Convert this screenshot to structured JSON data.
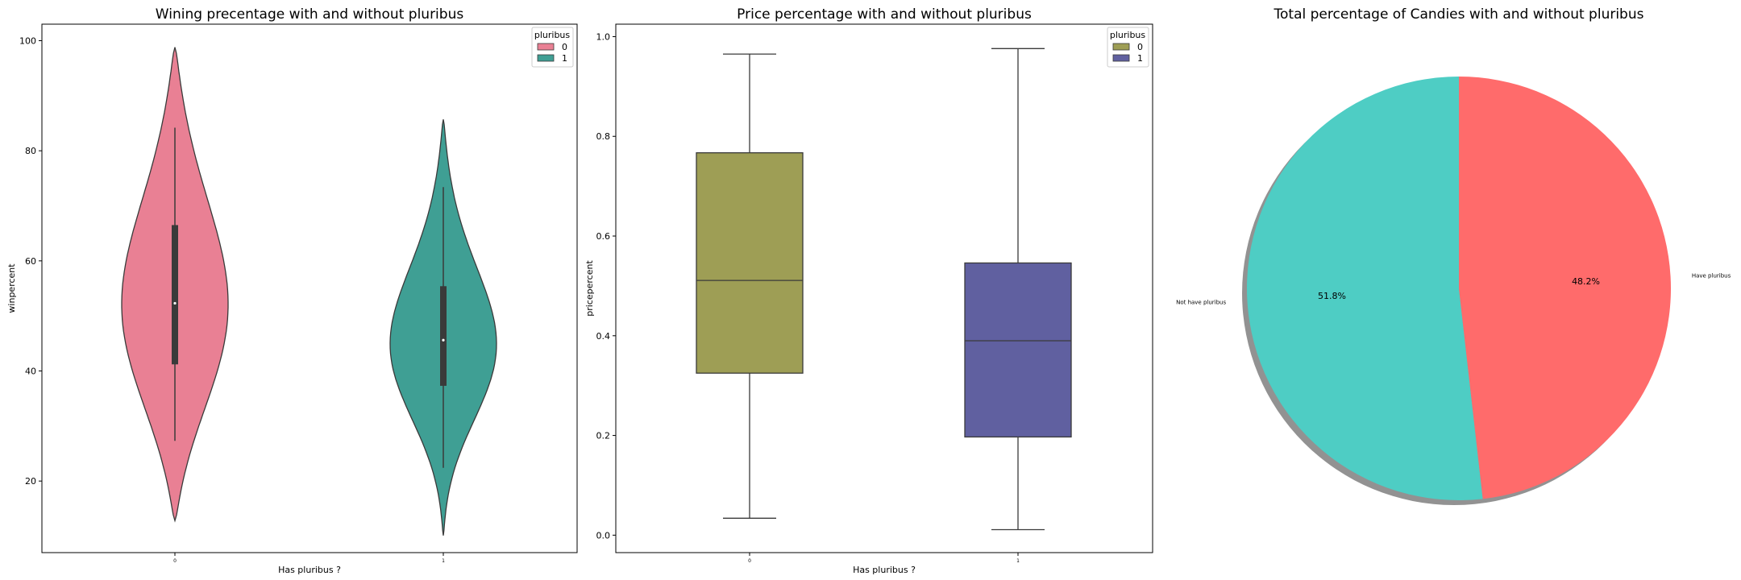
{
  "chart_data": [
    {
      "type": "violin",
      "title": "Wining precentage with and without pluribus",
      "xlabel": "Has pluribus ?",
      "ylabel": "winpercent",
      "categories": [
        "0",
        "1"
      ],
      "yticks": [
        "20",
        "40",
        "60",
        "80",
        "100"
      ],
      "ylim": [
        7,
        103
      ],
      "legend": {
        "title": "pluribus",
        "entries": [
          "0",
          "1"
        ],
        "placement": "top-right"
      },
      "colors": [
        "#e98094",
        "#3f9f94"
      ],
      "series": [
        {
          "name": "0",
          "min": 27.3,
          "q1": 41.2,
          "median": 52.3,
          "q3": 66.5,
          "max": 84.2,
          "kde_min": 12.8,
          "kde_max": 98.8
        },
        {
          "name": "1",
          "min": 22.4,
          "q1": 37.3,
          "median": 45.6,
          "q3": 55.4,
          "max": 73.4,
          "kde_min": 10.1,
          "kde_max": 85.7
        }
      ]
    },
    {
      "type": "box",
      "title": "Price percentage with and without pluribus",
      "xlabel": "Has pluribus ?",
      "ylabel": "pricepercent",
      "categories": [
        "0",
        "1"
      ],
      "yticks": [
        "0.0",
        "0.2",
        "0.4",
        "0.6",
        "0.8",
        "1.0"
      ],
      "ylim": [
        -0.035,
        1.025
      ],
      "legend": {
        "title": "pluribus",
        "entries": [
          "0",
          "1"
        ],
        "placement": "top-right"
      },
      "colors": [
        "#9e9e55",
        "#6060a0"
      ],
      "series": [
        {
          "name": "0",
          "min": 0.034,
          "q1": 0.325,
          "median": 0.511,
          "q3": 0.767,
          "max": 0.965
        },
        {
          "name": "1",
          "min": 0.011,
          "q1": 0.197,
          "median": 0.39,
          "q3": 0.546,
          "max": 0.976
        }
      ]
    },
    {
      "type": "pie",
      "title": "Total percentage of Candies with and without pluribus",
      "labels": [
        "Have pluribus",
        "Not have pluribus"
      ],
      "values": [
        48.2,
        51.8
      ],
      "pct_labels": [
        "48.2%",
        "51.8%"
      ],
      "colors": [
        "#ff6b6b",
        "#4ecdc4"
      ],
      "shadow": true
    }
  ]
}
